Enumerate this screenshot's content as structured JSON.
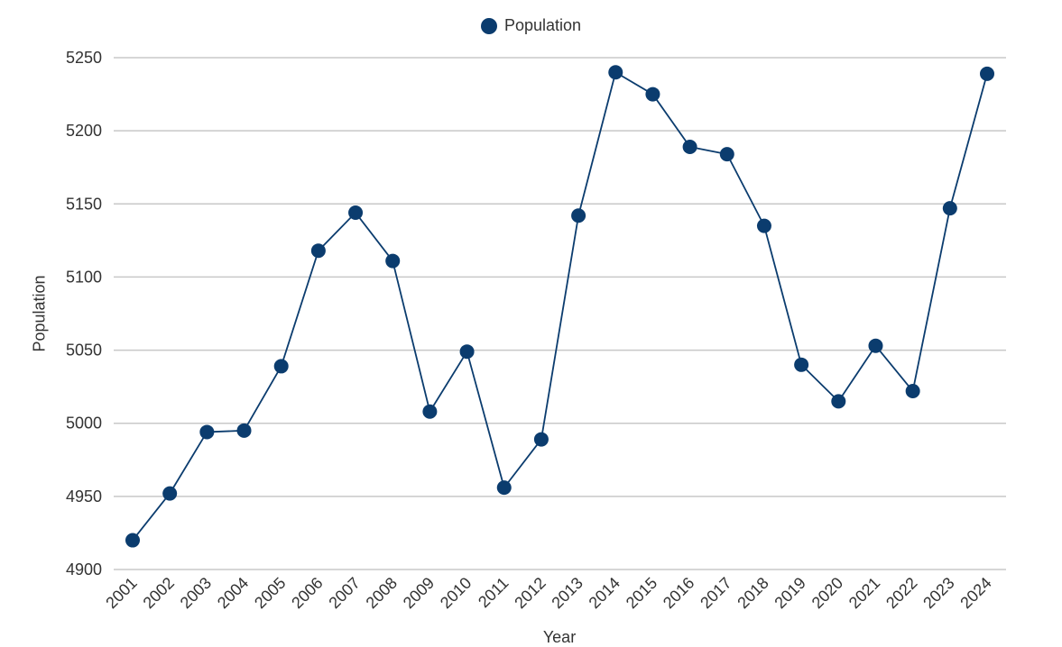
{
  "legend": {
    "label": "Population"
  },
  "colors": {
    "series": "#0b3c6e",
    "grid": "#c8c8c8",
    "text": "#333333"
  },
  "chart_data": {
    "type": "line",
    "title": "",
    "xlabel": "Year",
    "ylabel": "Population",
    "ylim": [
      4900,
      5250
    ],
    "yticks": [
      4900,
      4950,
      5000,
      5050,
      5100,
      5150,
      5200,
      5250
    ],
    "grid": true,
    "legend_position": "top-center",
    "categories": [
      "2001",
      "2002",
      "2003",
      "2004",
      "2005",
      "2006",
      "2007",
      "2008",
      "2009",
      "2010",
      "2011",
      "2012",
      "2013",
      "2014",
      "2015",
      "2016",
      "2017",
      "2018",
      "2019",
      "2020",
      "2021",
      "2022",
      "2023",
      "2024"
    ],
    "series": [
      {
        "name": "Population",
        "values": [
          4920,
          4952,
          4994,
          4995,
          5039,
          5118,
          5144,
          5111,
          5008,
          5049,
          4956,
          4989,
          5142,
          5240,
          5225,
          5189,
          5184,
          5135,
          5040,
          5015,
          5053,
          5022,
          5147,
          5239
        ]
      }
    ]
  }
}
